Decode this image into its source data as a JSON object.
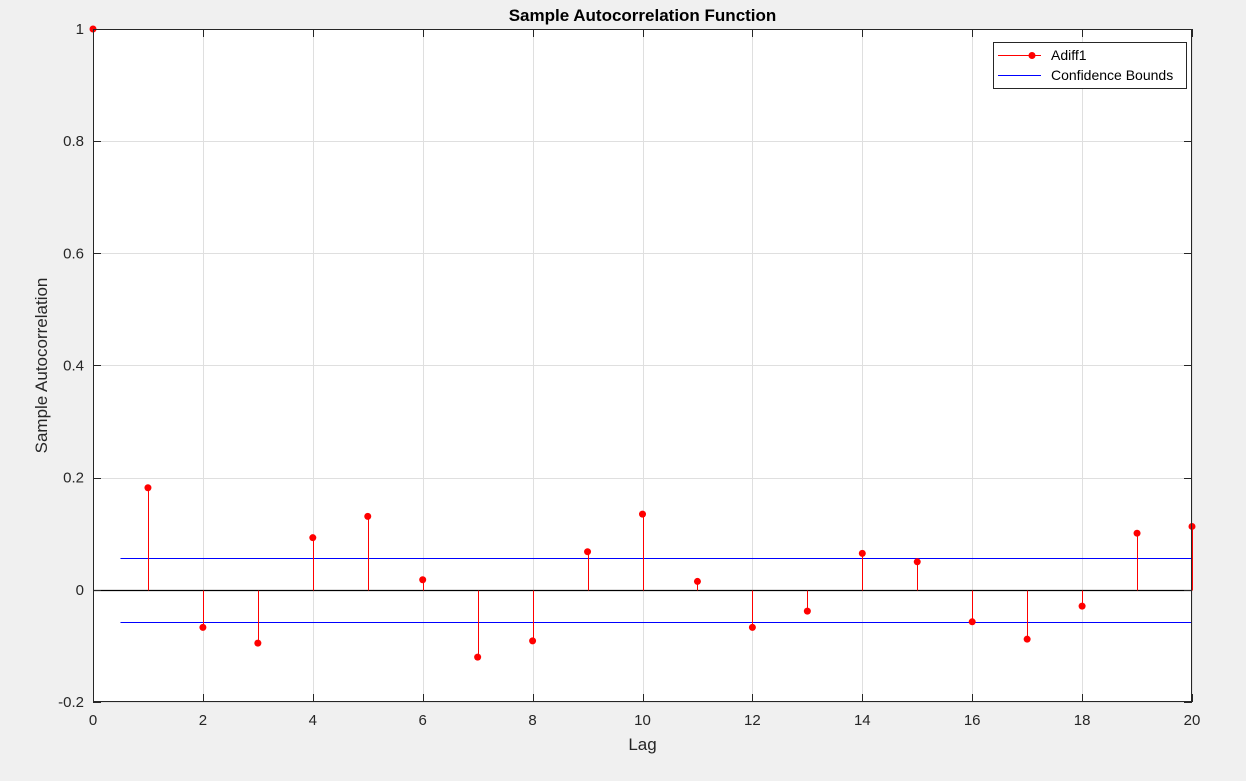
{
  "chart_data": {
    "type": "stem",
    "title": "Sample Autocorrelation Function",
    "xlabel": "Lag",
    "ylabel": "Sample Autocorrelation",
    "xlim": [
      0,
      20
    ],
    "ylim": [
      -0.2,
      1
    ],
    "xticks": [
      0,
      2,
      4,
      6,
      8,
      10,
      12,
      14,
      16,
      18,
      20
    ],
    "yticks": [
      -0.2,
      0,
      0.2,
      0.4,
      0.6,
      0.8,
      1
    ],
    "ytick_labels": [
      "-0.2",
      "0",
      "0.2",
      "0.4",
      "0.6",
      "0.8",
      "1"
    ],
    "grid": true,
    "legend_position": "top-right",
    "series": [
      {
        "name": "Adiff1",
        "kind": "stem",
        "color": "#ff0000",
        "x": [
          0,
          1,
          2,
          3,
          4,
          5,
          6,
          7,
          8,
          9,
          10,
          11,
          12,
          13,
          14,
          15,
          16,
          17,
          18,
          19,
          20
        ],
        "values": [
          1.0,
          0.182,
          -0.067,
          -0.095,
          0.093,
          0.131,
          0.018,
          -0.12,
          -0.091,
          0.068,
          0.135,
          0.015,
          -0.067,
          -0.038,
          0.065,
          0.05,
          -0.057,
          -0.088,
          -0.029,
          0.101,
          0.113
        ]
      },
      {
        "name": "Confidence Bounds",
        "kind": "hline-pair",
        "color": "#0000ff",
        "value": 0.057,
        "x_range": [
          0.5,
          20
        ]
      }
    ],
    "zero_line_color": "#000000"
  }
}
